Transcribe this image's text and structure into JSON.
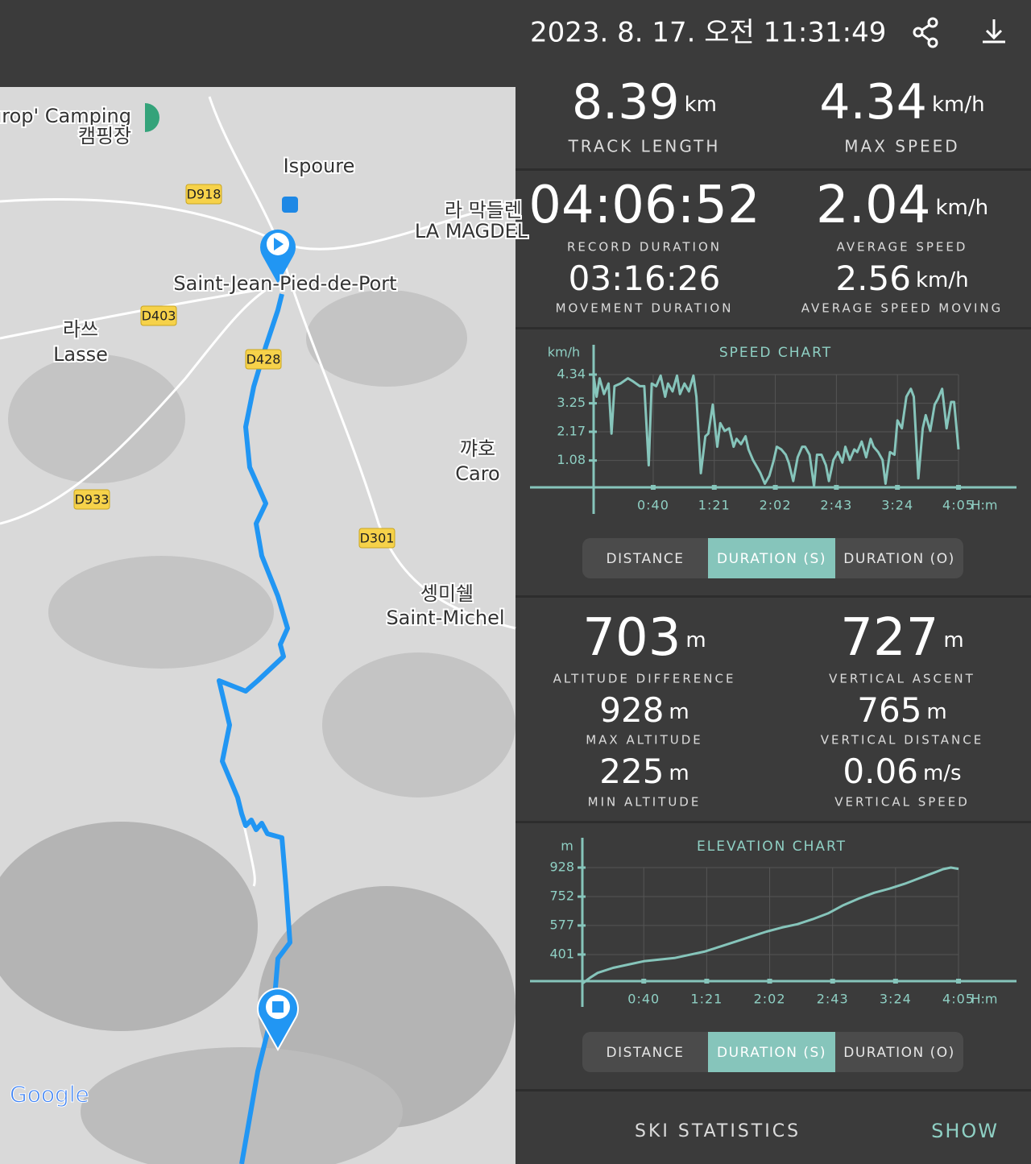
{
  "header": {
    "datetime": "2023. 8. 17. 오전 11:31:49"
  },
  "map": {
    "labels": [
      {
        "text": "urop' Camping"
      },
      {
        "text": "캠핑장"
      },
      {
        "text": "Ispoure"
      },
      {
        "text": "라 막들렌"
      },
      {
        "text": "LA MAGDEL"
      },
      {
        "text": "Saint-Jean-Pied-de-Port"
      },
      {
        "text": "라쓰"
      },
      {
        "text": "Lasse"
      },
      {
        "text": "꺄호"
      },
      {
        "text": "Caro"
      },
      {
        "text": "셍미쉘"
      },
      {
        "text": "Saint-Michel"
      }
    ],
    "roads": [
      "D918",
      "D403",
      "D428",
      "D933",
      "D301"
    ],
    "logo": "Google"
  },
  "stats": [
    {
      "value": "8.39",
      "unit": "km",
      "label": "TRACK LENGTH"
    },
    {
      "value": "4.34",
      "unit": "km/h",
      "label": "MAX SPEED"
    },
    {
      "value": "04:06:52",
      "label": "RECORD DURATION"
    },
    {
      "value": "2.04",
      "unit": "km/h",
      "label": "AVERAGE SPEED"
    },
    {
      "value": "03:16:26",
      "label": "MOVEMENT DURATION"
    },
    {
      "value": "2.56",
      "unit": "km/h",
      "label": "AVERAGE SPEED MOVING"
    },
    {
      "value": "703",
      "unit": "m",
      "label": "ALTITUDE DIFFERENCE"
    },
    {
      "value": "727",
      "unit": "m",
      "label": "VERTICAL ASCENT"
    },
    {
      "value": "928",
      "unit": "m",
      "label": "MAX ALTITUDE"
    },
    {
      "value": "765",
      "unit": "m",
      "label": "VERTICAL DISTANCE"
    },
    {
      "value": "225",
      "unit": "m",
      "label": "MIN ALTITUDE"
    },
    {
      "value": "0.06",
      "unit": "m/s",
      "label": "VERTICAL SPEED"
    }
  ],
  "chart_data": [
    {
      "type": "line",
      "title": "SPEED CHART",
      "y_label": "km/h",
      "x_label": "H:m",
      "color": "#86c5bb",
      "x": [
        0,
        2,
        4,
        7,
        10,
        12,
        14,
        18,
        23,
        26,
        31,
        34,
        37,
        39,
        42,
        45,
        48,
        50,
        53,
        56,
        58,
        61,
        64,
        67,
        69,
        72,
        75,
        77,
        80,
        83,
        85,
        88,
        91,
        94,
        96,
        99,
        102,
        104,
        107,
        110,
        112,
        115,
        118,
        121,
        123,
        126,
        129,
        131,
        134,
        137,
        140,
        142,
        145,
        148,
        150,
        153,
        156,
        158,
        161,
        164,
        167,
        169,
        172,
        175,
        177,
        180,
        183,
        186,
        188,
        191,
        194,
        196,
        199,
        202,
        204,
        207,
        210,
        213,
        215,
        218,
        221,
        223,
        226,
        229,
        231,
        234,
        237,
        240,
        242,
        245
      ],
      "values": [
        4.3,
        3.5,
        4.2,
        3.6,
        4.0,
        2.1,
        3.9,
        4.0,
        4.2,
        4.1,
        3.9,
        3.9,
        0.9,
        4.0,
        3.9,
        4.3,
        3.5,
        4.0,
        3.7,
        4.3,
        3.6,
        4.0,
        3.7,
        4.3,
        3.5,
        0.6,
        2.0,
        2.1,
        3.2,
        1.6,
        2.5,
        2.2,
        2.3,
        1.6,
        1.9,
        1.7,
        2.0,
        1.5,
        1.1,
        0.8,
        0.6,
        0.2,
        0.5,
        1.1,
        1.6,
        1.5,
        1.3,
        1.0,
        0.3,
        1.2,
        1.6,
        1.6,
        1.3,
        0.1,
        1.3,
        1.3,
        0.9,
        0.3,
        1.1,
        1.4,
        1.0,
        1.6,
        1.1,
        1.5,
        1.4,
        1.8,
        1.2,
        1.9,
        1.6,
        1.4,
        1.1,
        0.2,
        1.4,
        1.3,
        2.6,
        2.3,
        3.5,
        3.8,
        3.5,
        0.4,
        2.3,
        2.8,
        2.2,
        3.2,
        3.4,
        3.8,
        2.3,
        3.3,
        3.3,
        1.5
      ],
      "xlim": [
        0,
        245
      ],
      "ylim": [
        0,
        4.34
      ],
      "xticks": [
        {
          "value": 40,
          "label": "0:40"
        },
        {
          "value": 81,
          "label": "1:21"
        },
        {
          "value": 122,
          "label": "2:02"
        },
        {
          "value": 163,
          "label": "2:43"
        },
        {
          "value": 204,
          "label": "3:24"
        },
        {
          "value": 245,
          "label": "4:05"
        }
      ],
      "yticks": [
        1.08,
        2.17,
        3.25,
        4.34
      ],
      "grid": true
    },
    {
      "type": "line",
      "title": "ELEVATION CHART",
      "y_label": "m",
      "x_label": "H:m",
      "color": "#86c5bb",
      "x": [
        0,
        5,
        10,
        20,
        30,
        40,
        50,
        60,
        70,
        80,
        90,
        100,
        110,
        120,
        130,
        140,
        150,
        160,
        170,
        180,
        190,
        200,
        210,
        220,
        230,
        235,
        240,
        245
      ],
      "values": [
        225,
        260,
        290,
        320,
        340,
        360,
        370,
        380,
        400,
        420,
        450,
        480,
        510,
        540,
        565,
        585,
        615,
        650,
        700,
        740,
        775,
        800,
        830,
        865,
        900,
        918,
        928,
        920
      ],
      "xlim": [
        0,
        245
      ],
      "ylim": [
        225,
        928
      ],
      "xticks": [
        {
          "value": 40,
          "label": "0:40"
        },
        {
          "value": 81,
          "label": "1:21"
        },
        {
          "value": 122,
          "label": "2:02"
        },
        {
          "value": 163,
          "label": "2:43"
        },
        {
          "value": 204,
          "label": "3:24"
        },
        {
          "value": 245,
          "label": "4:05"
        }
      ],
      "yticks": [
        401,
        577,
        752,
        928
      ],
      "grid": true
    }
  ],
  "speed_tabs": {
    "options": [
      "DISTANCE",
      "DURATION (S)",
      "DURATION (O)"
    ],
    "active": 1
  },
  "elevation_tabs": {
    "options": [
      "DISTANCE",
      "DURATION (S)",
      "DURATION (O)"
    ],
    "active": 1
  },
  "footer": {
    "label": "SKI STATISTICS",
    "action": "SHOW"
  }
}
